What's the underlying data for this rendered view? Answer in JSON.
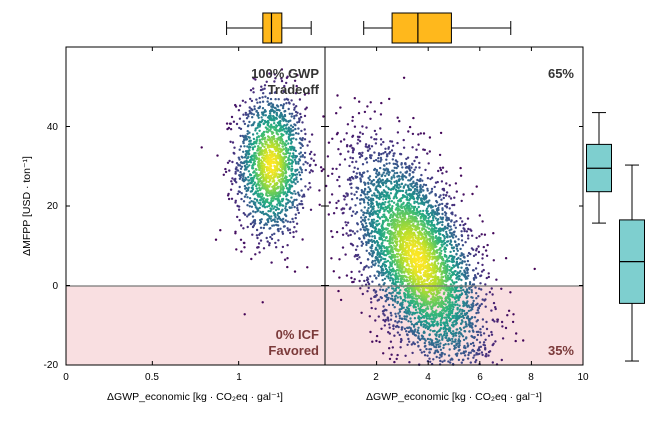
{
  "chart_data": {
    "type": "scatter",
    "shared_ylabel": "ΔMFPP [USD · ton⁻¹]",
    "ylim": [
      -20,
      60
    ],
    "yticks": [
      -20,
      0,
      20,
      40
    ],
    "zero_line": 0,
    "negative_region_fill": "#f9dfe1",
    "colormap": "viridis",
    "panels": [
      {
        "id": "left",
        "xlabel": "ΔGWP_economic [kg · CO₂eq · gal⁻¹]",
        "xlim": [
          0,
          1.5
        ],
        "xticks": [
          0,
          0.5,
          1
        ],
        "xtick_labels": [
          "0",
          "0.5",
          "1"
        ],
        "cloud": {
          "x_mean": 1.19,
          "x_sd": 0.1,
          "y_mean": 30.5,
          "y_sd": 9,
          "corr": 0.0,
          "n": 1700
        },
        "annotations": {
          "top_right": [
            "100% GWP",
            "Tradeoff"
          ],
          "bottom_right": [
            "0% ICF",
            "Favored"
          ]
        },
        "annotation_colors": {
          "top": "#333333",
          "bottom": "#7b3a3a"
        },
        "top_boxplot": {
          "whisker_low": 0.93,
          "q1": 1.14,
          "median": 1.19,
          "q3": 1.25,
          "whisker_high": 1.42
        }
      },
      {
        "id": "right",
        "xlabel": "ΔGWP_economic [kg · CO₂eq · gal⁻¹]",
        "xlim": [
          0,
          10
        ],
        "xticks": [
          2,
          4,
          6,
          8,
          10
        ],
        "xtick_labels": [
          "2",
          "4",
          "6",
          "8",
          "10"
        ],
        "cloud": {
          "x_mean": 3.6,
          "x_sd": 1.25,
          "y_mean": 6.5,
          "y_sd": 13.5,
          "corr": -0.55,
          "n": 4500
        },
        "annotations": {
          "top_right": [
            "65%"
          ],
          "bottom_right": [
            "35%"
          ]
        },
        "annotation_colors": {
          "top": "#333333",
          "bottom": "#7b3a3a"
        },
        "top_boxplot": {
          "whisker_low": 1.5,
          "q1": 2.6,
          "median": 3.6,
          "q3": 4.9,
          "whisker_high": 7.2
        }
      }
    ],
    "side_boxplots": [
      {
        "id": "left-panel",
        "whisker_low": 15.7,
        "q1": 23.6,
        "median": 29.5,
        "q3": 35.5,
        "whisker_high": 43.5
      },
      {
        "id": "right-panel",
        "whisker_low": -19,
        "q1": -4.5,
        "median": 6,
        "q3": 16.5,
        "whisker_high": 30.3
      }
    ],
    "boxplot_fill_top": "#ffb81c",
    "boxplot_fill_side": "#7ecfcf"
  }
}
